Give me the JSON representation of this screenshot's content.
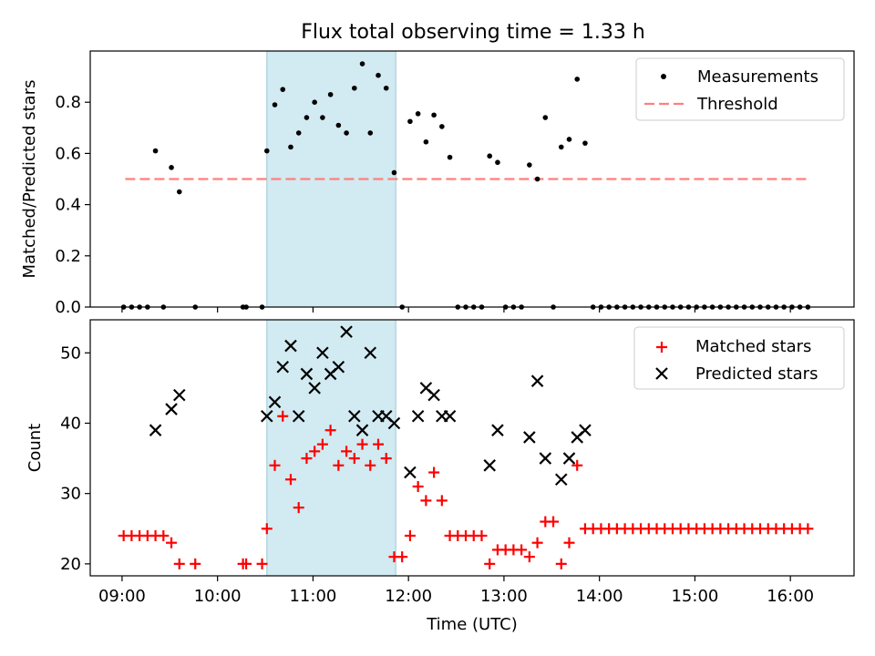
{
  "title": "Flux total observing time = 1.33 h",
  "colors": {
    "shade": "#add8e6",
    "threshold": "#ff7f7f",
    "matched": "#ff0000",
    "predicted": "#000000",
    "measurement": "#000000"
  },
  "chart_data": [
    {
      "type": "scatter",
      "ylabel": "Matched/Predicted stars",
      "xlabel": "",
      "xlim": [
        "08:40",
        "16:40"
      ],
      "ylim": [
        0,
        1.0
      ],
      "yticks": [
        "0.0",
        "0.2",
        "0.4",
        "0.6",
        "0.8"
      ],
      "ytick_values": [
        0,
        0.2,
        0.4,
        0.6,
        0.8
      ],
      "shaded_interval": [
        "10:31",
        "11:52"
      ],
      "legend": {
        "position": "top-right",
        "entries": [
          "Measurements",
          "Threshold"
        ]
      },
      "threshold": {
        "name": "Threshold",
        "y": 0.5,
        "x_range": [
          "09:02",
          "16:11"
        ]
      },
      "measurements": {
        "name": "Measurements",
        "points": [
          [
            "09:01",
            0
          ],
          [
            "09:06",
            0
          ],
          [
            "09:11",
            0
          ],
          [
            "09:16",
            0
          ],
          [
            "09:21",
            0.61
          ],
          [
            "09:26",
            0
          ],
          [
            "09:31",
            0.545
          ],
          [
            "09:36",
            0.45
          ],
          [
            "09:46",
            0
          ],
          [
            "10:16",
            0
          ],
          [
            "10:18",
            0
          ],
          [
            "10:28",
            0
          ],
          [
            "10:31",
            0.61
          ],
          [
            "10:36",
            0.79
          ],
          [
            "10:41",
            0.85
          ],
          [
            "10:46",
            0.625
          ],
          [
            "10:51",
            0.68
          ],
          [
            "10:56",
            0.74
          ],
          [
            "11:01",
            0.8
          ],
          [
            "11:06",
            0.74
          ],
          [
            "11:11",
            0.83
          ],
          [
            "11:16",
            0.71
          ],
          [
            "11:21",
            0.68
          ],
          [
            "11:26",
            0.855
          ],
          [
            "11:31",
            0.95
          ],
          [
            "11:36",
            0.68
          ],
          [
            "11:41",
            0.905
          ],
          [
            "11:46",
            0.855
          ],
          [
            "11:51",
            0.525
          ],
          [
            "11:56",
            0
          ],
          [
            "12:01",
            0.725
          ],
          [
            "12:06",
            0.755
          ],
          [
            "12:11",
            0.645
          ],
          [
            "12:16",
            0.75
          ],
          [
            "12:21",
            0.705
          ],
          [
            "12:26",
            0.585
          ],
          [
            "12:31",
            0
          ],
          [
            "12:36",
            0
          ],
          [
            "12:41",
            0
          ],
          [
            "12:46",
            0
          ],
          [
            "12:51",
            0.59
          ],
          [
            "12:56",
            0.565
          ],
          [
            "13:01",
            0
          ],
          [
            "13:06",
            0
          ],
          [
            "13:11",
            0
          ],
          [
            "13:16",
            0.555
          ],
          [
            "13:21",
            0.5
          ],
          [
            "13:26",
            0.74
          ],
          [
            "13:31",
            0
          ],
          [
            "13:36",
            0.625
          ],
          [
            "13:41",
            0.655
          ],
          [
            "13:46",
            0.89
          ],
          [
            "13:51",
            0.64
          ],
          [
            "13:56",
            0
          ],
          [
            "14:01",
            0
          ],
          [
            "14:06",
            0
          ],
          [
            "14:11",
            0
          ],
          [
            "14:16",
            0
          ],
          [
            "14:21",
            0
          ],
          [
            "14:26",
            0
          ],
          [
            "14:31",
            0
          ],
          [
            "14:36",
            0
          ],
          [
            "14:41",
            0
          ],
          [
            "14:46",
            0
          ],
          [
            "14:51",
            0
          ],
          [
            "14:56",
            0
          ],
          [
            "15:01",
            0
          ],
          [
            "15:06",
            0
          ],
          [
            "15:11",
            0
          ],
          [
            "15:16",
            0
          ],
          [
            "15:21",
            0
          ],
          [
            "15:26",
            0
          ],
          [
            "15:31",
            0
          ],
          [
            "15:36",
            0
          ],
          [
            "15:41",
            0
          ],
          [
            "15:46",
            0
          ],
          [
            "15:51",
            0
          ],
          [
            "15:56",
            0
          ],
          [
            "16:01",
            0
          ],
          [
            "16:06",
            0
          ],
          [
            "16:11",
            0
          ]
        ]
      }
    },
    {
      "type": "scatter",
      "ylabel": "Count",
      "xlabel": "Time (UTC)",
      "xlim": [
        "08:40",
        "16:40"
      ],
      "ylim": [
        18.3,
        54.7
      ],
      "yticks": [
        "20",
        "30",
        "40",
        "50"
      ],
      "ytick_values": [
        20,
        30,
        40,
        50
      ],
      "xticks": [
        "09:00",
        "10:00",
        "11:00",
        "12:00",
        "13:00",
        "14:00",
        "15:00",
        "16:00"
      ],
      "shaded_interval": [
        "10:31",
        "11:52"
      ],
      "legend": {
        "position": "top-right",
        "entries": [
          "Matched stars",
          "Predicted stars"
        ]
      },
      "series": [
        {
          "name": "Matched stars",
          "marker": "plus",
          "points": [
            [
              "09:01",
              24
            ],
            [
              "09:06",
              24
            ],
            [
              "09:11",
              24
            ],
            [
              "09:16",
              24
            ],
            [
              "09:21",
              24
            ],
            [
              "09:26",
              24
            ],
            [
              "09:31",
              23
            ],
            [
              "09:36",
              20
            ],
            [
              "09:46",
              20
            ],
            [
              "10:16",
              20
            ],
            [
              "10:18",
              20
            ],
            [
              "10:28",
              20
            ],
            [
              "10:31",
              25
            ],
            [
              "10:36",
              34
            ],
            [
              "10:41",
              41
            ],
            [
              "10:46",
              32
            ],
            [
              "10:51",
              28
            ],
            [
              "10:56",
              35
            ],
            [
              "11:01",
              36
            ],
            [
              "11:06",
              37
            ],
            [
              "11:11",
              39
            ],
            [
              "11:16",
              34
            ],
            [
              "11:21",
              36
            ],
            [
              "11:26",
              35
            ],
            [
              "11:31",
              37
            ],
            [
              "11:36",
              34
            ],
            [
              "11:41",
              37
            ],
            [
              "11:46",
              35
            ],
            [
              "11:51",
              21
            ],
            [
              "11:56",
              21
            ],
            [
              "12:01",
              24
            ],
            [
              "12:06",
              31
            ],
            [
              "12:11",
              29
            ],
            [
              "12:16",
              33
            ],
            [
              "12:21",
              29
            ],
            [
              "12:26",
              24
            ],
            [
              "12:31",
              24
            ],
            [
              "12:36",
              24
            ],
            [
              "12:41",
              24
            ],
            [
              "12:46",
              24
            ],
            [
              "12:51",
              20
            ],
            [
              "12:56",
              22
            ],
            [
              "13:01",
              22
            ],
            [
              "13:06",
              22
            ],
            [
              "13:11",
              22
            ],
            [
              "13:16",
              21
            ],
            [
              "13:21",
              23
            ],
            [
              "13:26",
              26
            ],
            [
              "13:31",
              26
            ],
            [
              "13:36",
              20
            ],
            [
              "13:41",
              23
            ],
            [
              "13:46",
              34
            ],
            [
              "13:51",
              25
            ],
            [
              "13:56",
              25
            ],
            [
              "14:01",
              25
            ],
            [
              "14:06",
              25
            ],
            [
              "14:11",
              25
            ],
            [
              "14:16",
              25
            ],
            [
              "14:21",
              25
            ],
            [
              "14:26",
              25
            ],
            [
              "14:31",
              25
            ],
            [
              "14:36",
              25
            ],
            [
              "14:41",
              25
            ],
            [
              "14:46",
              25
            ],
            [
              "14:51",
              25
            ],
            [
              "14:56",
              25
            ],
            [
              "15:01",
              25
            ],
            [
              "15:06",
              25
            ],
            [
              "15:11",
              25
            ],
            [
              "15:16",
              25
            ],
            [
              "15:21",
              25
            ],
            [
              "15:26",
              25
            ],
            [
              "15:31",
              25
            ],
            [
              "15:36",
              25
            ],
            [
              "15:41",
              25
            ],
            [
              "15:46",
              25
            ],
            [
              "15:51",
              25
            ],
            [
              "15:56",
              25
            ],
            [
              "16:01",
              25
            ],
            [
              "16:06",
              25
            ],
            [
              "16:11",
              25
            ]
          ]
        },
        {
          "name": "Predicted stars",
          "marker": "x",
          "points": [
            [
              "09:21",
              39
            ],
            [
              "09:31",
              42
            ],
            [
              "09:36",
              44
            ],
            [
              "10:31",
              41
            ],
            [
              "10:36",
              43
            ],
            [
              "10:41",
              48
            ],
            [
              "10:46",
              51
            ],
            [
              "10:51",
              41
            ],
            [
              "10:56",
              47
            ],
            [
              "11:01",
              45
            ],
            [
              "11:06",
              50
            ],
            [
              "11:11",
              47
            ],
            [
              "11:16",
              48
            ],
            [
              "11:21",
              53
            ],
            [
              "11:26",
              41
            ],
            [
              "11:31",
              39
            ],
            [
              "11:36",
              50
            ],
            [
              "11:41",
              41
            ],
            [
              "11:46",
              41
            ],
            [
              "11:51",
              40
            ],
            [
              "12:01",
              33
            ],
            [
              "12:06",
              41
            ],
            [
              "12:11",
              45
            ],
            [
              "12:16",
              44
            ],
            [
              "12:21",
              41
            ],
            [
              "12:26",
              41
            ],
            [
              "12:51",
              34
            ],
            [
              "12:56",
              39
            ],
            [
              "13:16",
              38
            ],
            [
              "13:21",
              46
            ],
            [
              "13:26",
              35
            ],
            [
              "13:36",
              32
            ],
            [
              "13:41",
              35
            ],
            [
              "13:46",
              38
            ],
            [
              "13:51",
              39
            ]
          ]
        }
      ]
    }
  ]
}
